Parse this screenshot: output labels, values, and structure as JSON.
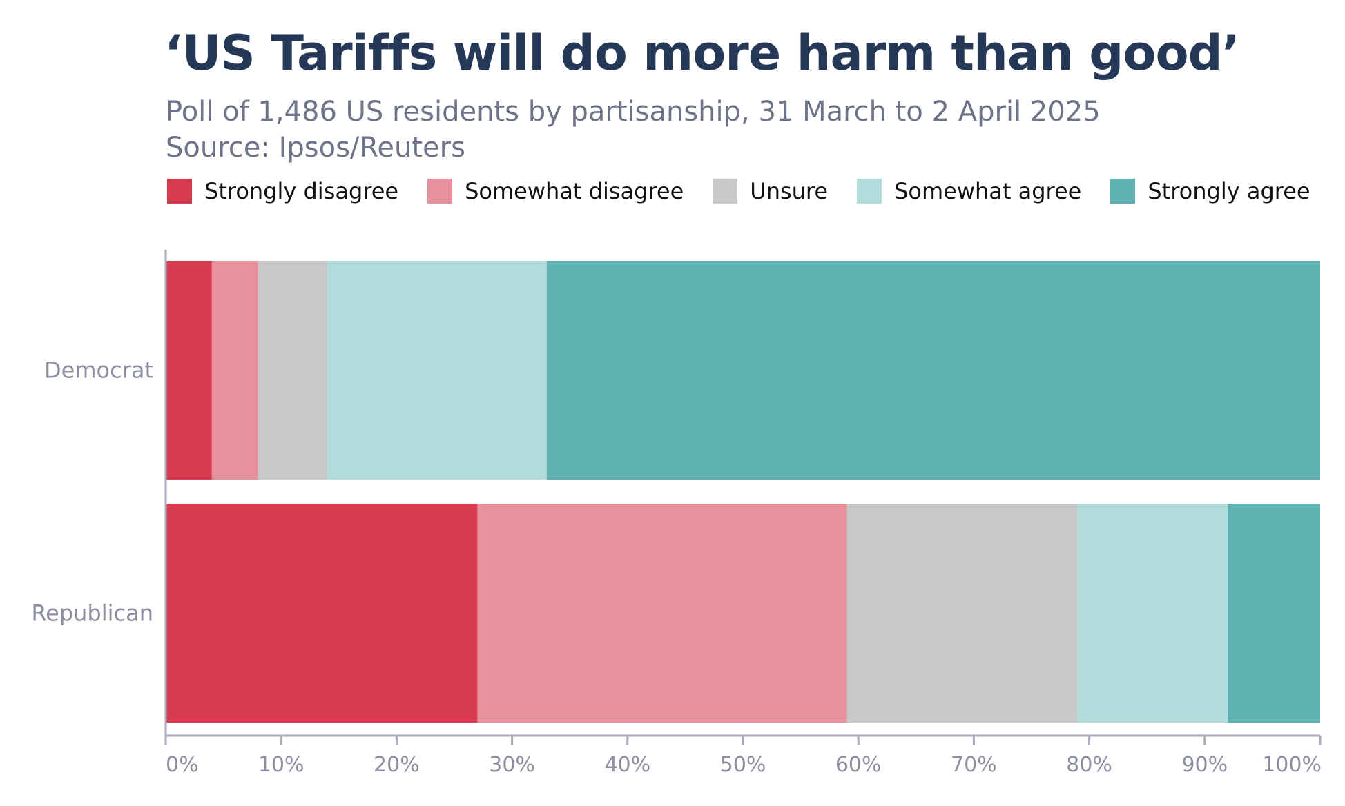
{
  "chart_data": {
    "type": "bar",
    "orientation": "horizontal",
    "stacked": true,
    "title": "‘US Tariffs will do more harm than good’",
    "subtitle_lines": [
      "Poll of 1,486 US residents by partisanship, 31 March to 2 April 2025",
      "Source: Ipsos/Reuters"
    ],
    "categories": [
      "Democrat",
      "Republican"
    ],
    "series": [
      {
        "name": "Strongly disagree",
        "color": "#d63b4f",
        "values": [
          4,
          27
        ]
      },
      {
        "name": "Somewhat disagree",
        "color": "#e8909c",
        "values": [
          4,
          32
        ]
      },
      {
        "name": "Unsure",
        "color": "#c8c8c8",
        "values": [
          6,
          20
        ]
      },
      {
        "name": "Somewhat agree",
        "color": "#b0dcdb",
        "values": [
          19,
          13
        ]
      },
      {
        "name": "Strongly agree",
        "color": "#5fb4b3",
        "values": [
          67,
          8
        ]
      }
    ],
    "xlim": [
      0,
      100
    ],
    "xticks": [
      "0%",
      "10%",
      "20%",
      "30%",
      "40%",
      "50%",
      "60%",
      "70%",
      "80%",
      "90%",
      "100%"
    ],
    "grid": false,
    "legend_position": "top"
  }
}
